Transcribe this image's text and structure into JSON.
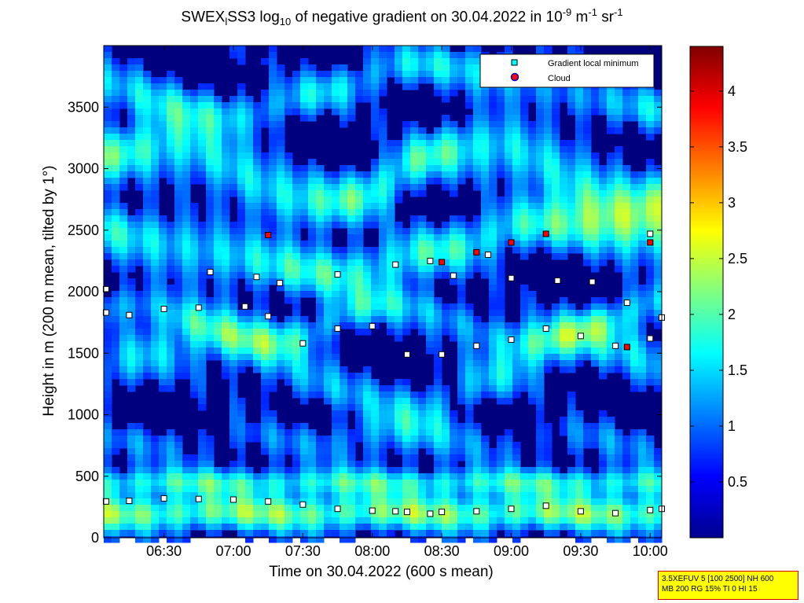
{
  "title": {
    "pre": "SWEX",
    "sub1": "l",
    "mid": "SS3 log",
    "sub2": "10",
    "post": " of negative gradient on 30.04.2022 in 10",
    "sup1": "-9",
    "unit1": " m",
    "sup2": "-1",
    "unit2": " sr",
    "sup3": "-1"
  },
  "xlabel": "Time on 30.04.2022 (600 s mean)",
  "ylabel": "Height in m (200 m mean, tilted by 1°)",
  "info": {
    "line1": "3.5XEFUV 5 [100 2500] NH 600",
    "line2": "MB 200 RG 15% TI 0 HI 15"
  },
  "colors": {
    "deep_blue": "#00007f",
    "colormap": [
      "#00008f",
      "#0000ff",
      "#0080ff",
      "#00ffff",
      "#80ff80",
      "#ffff00",
      "#ff8000",
      "#ff0000",
      "#800000"
    ]
  },
  "chart_data": {
    "type": "heatmap",
    "xlim": [
      "06:04",
      "10:05"
    ],
    "ylim": [
      0,
      4000
    ],
    "x_ticks": [
      "06:30",
      "07:00",
      "07:30",
      "08:00",
      "08:30",
      "09:00",
      "09:30",
      "10:00"
    ],
    "y_ticks": [
      0,
      500,
      1000,
      1500,
      2000,
      2500,
      3000,
      3500
    ],
    "colorbar": {
      "range": [
        0,
        4.4
      ],
      "ticks": [
        0.5,
        1,
        1.5,
        2,
        2.5,
        3,
        3.5,
        4
      ]
    },
    "legend": {
      "position": "top-right",
      "entries": [
        "Gradient local minimum",
        "Cloud"
      ]
    },
    "series": [
      {
        "name": "Gradient local minimum",
        "marker": "square",
        "x": [
          "06:05",
          "06:15",
          "06:30",
          "06:45",
          "07:00",
          "07:15",
          "07:30",
          "07:45",
          "08:00",
          "08:10",
          "08:15",
          "08:25",
          "08:30",
          "08:45",
          "09:00",
          "09:15",
          "09:30",
          "09:45",
          "10:00",
          "10:05"
        ],
        "y": [
          295,
          300,
          320,
          315,
          310,
          295,
          270,
          235,
          220,
          215,
          210,
          195,
          210,
          215,
          235,
          260,
          215,
          200,
          225,
          235
        ]
      },
      {
        "name": "Gradient local minimum",
        "marker": "square",
        "x": [
          "06:05",
          "06:15",
          "06:30",
          "06:45",
          "07:05",
          "07:15",
          "07:30",
          "07:45",
          "08:00",
          "08:15",
          "08:30",
          "08:45",
          "09:00",
          "09:15",
          "09:30",
          "09:45",
          "10:00",
          "10:05"
        ],
        "y": [
          1830,
          1810,
          1860,
          1870,
          1880,
          1800,
          1580,
          1700,
          1720,
          1490,
          1490,
          1560,
          1610,
          1700,
          1640,
          1560,
          1620,
          1790
        ]
      },
      {
        "name": "Gradient local minimum",
        "marker": "square",
        "x": [
          "06:05",
          "06:50",
          "07:10",
          "07:20",
          "07:45",
          "08:10",
          "08:25",
          "08:35",
          "08:50",
          "09:00",
          "09:20",
          "09:35",
          "09:50",
          "10:00"
        ],
        "y": [
          2020,
          2160,
          2120,
          2070,
          2140,
          2220,
          2250,
          2130,
          2300,
          2110,
          2090,
          2080,
          1910,
          2470
        ]
      },
      {
        "name": "Cloud",
        "marker": "circle",
        "x": [
          "07:15",
          "08:30",
          "08:45",
          "09:00",
          "09:15",
          "09:50",
          "10:00"
        ],
        "y": [
          2460,
          2240,
          2320,
          2400,
          2470,
          1550,
          2400
        ]
      }
    ]
  }
}
